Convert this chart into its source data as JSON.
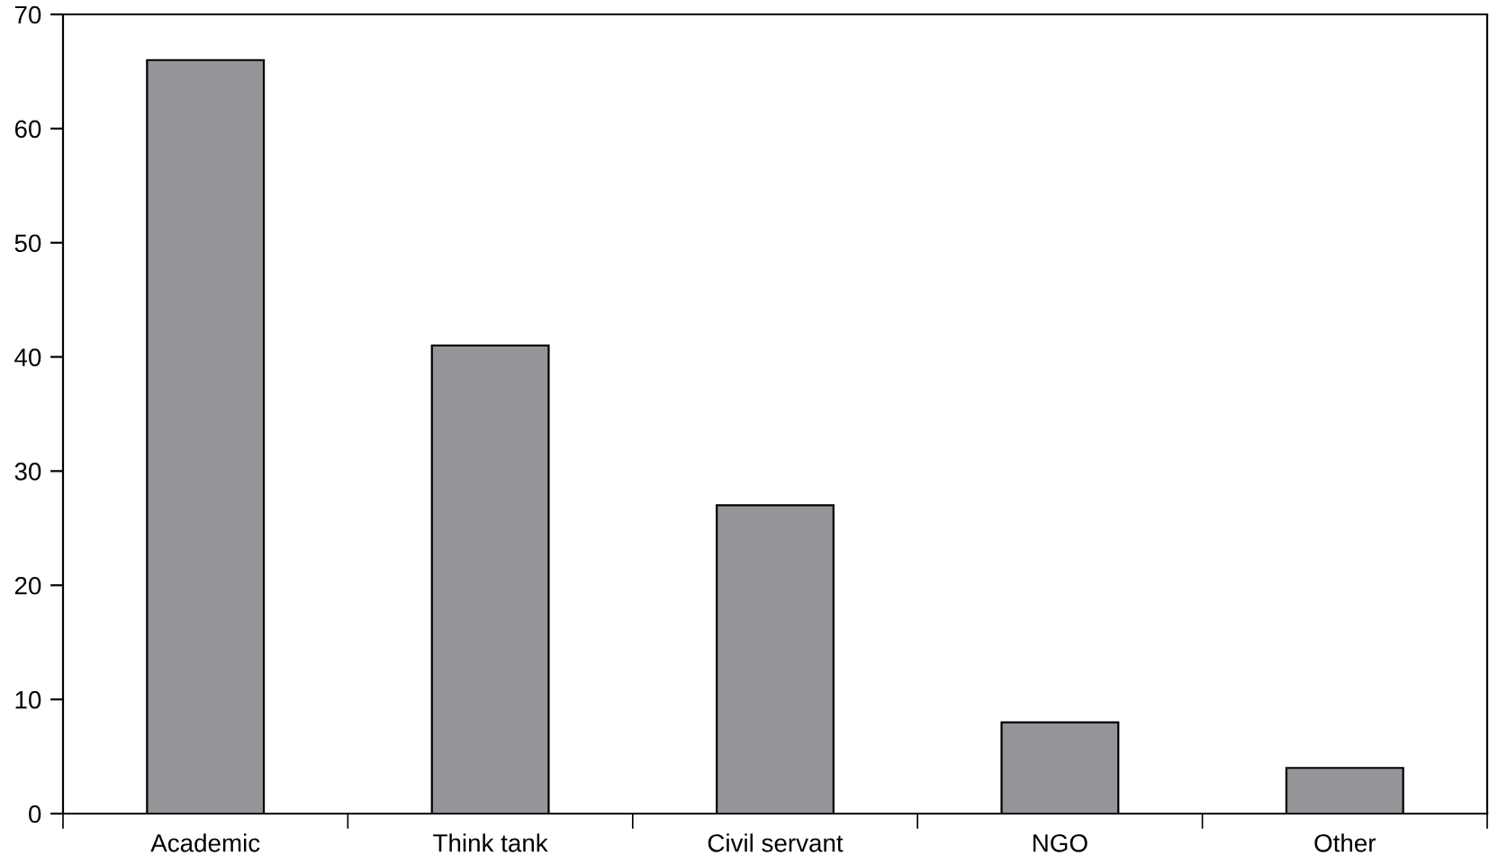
{
  "chart_data": {
    "type": "bar",
    "categories": [
      "Academic",
      "Think tank",
      "Civil servant",
      "NGO",
      "Other"
    ],
    "values": [
      66,
      41,
      27,
      8,
      4
    ],
    "color": "#939598",
    "ylim": [
      0,
      70
    ],
    "yticks": [
      0,
      10,
      20,
      30,
      40,
      50,
      60,
      70
    ],
    "grid": false
  }
}
